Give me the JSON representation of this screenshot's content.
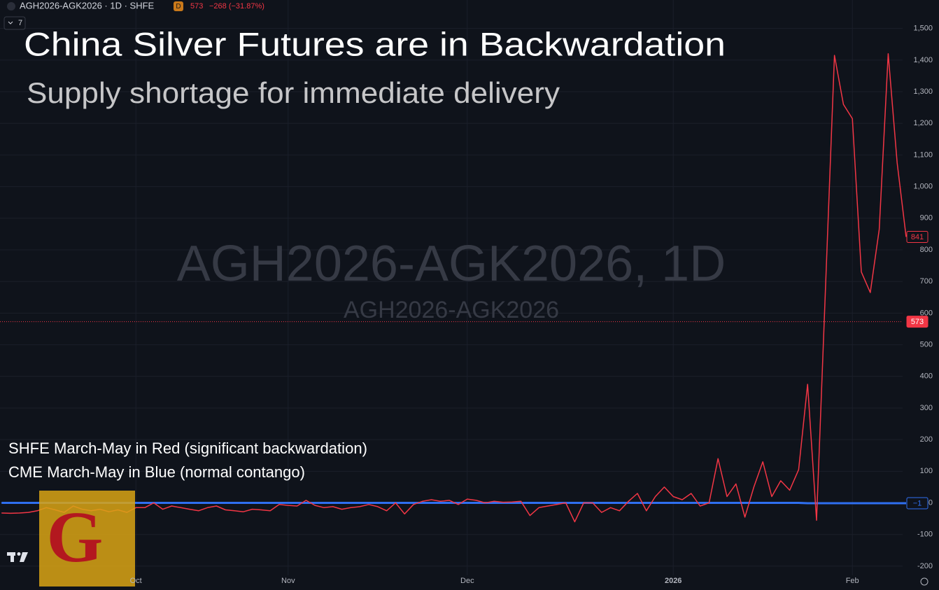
{
  "chart_data": {
    "type": "line",
    "header": {
      "symbol": "AGH2026-AGK2026 · 1D · SHFE",
      "badge": "D",
      "last": 573,
      "change": "−268 (−31.87%)",
      "indicators_count": 7
    },
    "title": "China Silver Futures are in Backwardation",
    "subtitle": "Supply shortage for immediate delivery",
    "watermark": [
      "AGH2026-AGK2026, 1D",
      "AGH2026-AGK2026"
    ],
    "annotations": [
      "SHFE March-May in Red (significant backwardation)",
      "CME March-May in Blue (normal contango)"
    ],
    "logo_text": "G",
    "categories": [
      null,
      null,
      null,
      null,
      null,
      null,
      null,
      null,
      null,
      null,
      null,
      null,
      null,
      null,
      null,
      "Oct",
      null,
      null,
      null,
      null,
      null,
      null,
      null,
      null,
      null,
      null,
      null,
      null,
      null,
      null,
      null,
      null,
      "Nov",
      null,
      null,
      null,
      null,
      null,
      null,
      null,
      null,
      null,
      null,
      null,
      null,
      null,
      null,
      null,
      null,
      null,
      null,
      null,
      "Dec",
      null,
      null,
      null,
      null,
      null,
      null,
      null,
      null,
      null,
      null,
      null,
      null,
      null,
      null,
      null,
      null,
      null,
      null,
      null,
      null,
      null,
      null,
      "2026",
      null,
      null,
      null,
      null,
      null,
      null,
      null,
      null,
      null,
      null,
      null,
      null,
      null,
      null,
      null,
      null,
      null,
      null,
      null,
      "Feb",
      null,
      null,
      null,
      null,
      null,
      null
    ],
    "series": [
      {
        "name": "SHFE March-May",
        "color": "#f23645",
        "values": [
          -32,
          -33,
          -32,
          -30,
          -25,
          -15,
          -22,
          -30,
          -10,
          -20,
          -25,
          -20,
          -28,
          -22,
          -30,
          -15,
          -15,
          0,
          -20,
          -10,
          -15,
          -20,
          -25,
          -15,
          -10,
          -22,
          -25,
          -28,
          -20,
          -22,
          -25,
          -5,
          -8,
          -10,
          8,
          -8,
          -15,
          -12,
          -20,
          -15,
          -12,
          -5,
          -12,
          -25,
          0,
          -35,
          -5,
          5,
          10,
          5,
          8,
          -5,
          12,
          8,
          0,
          5,
          2,
          3,
          5,
          -40,
          -15,
          -10,
          -5,
          0,
          -60,
          0,
          0,
          -30,
          -15,
          -25,
          5,
          30,
          -25,
          20,
          50,
          20,
          10,
          30,
          -10,
          0,
          140,
          20,
          60,
          -45,
          50,
          130,
          20,
          70,
          40,
          105,
          375,
          -55,
          680,
          1415,
          1260,
          1215,
          730,
          665,
          865,
          1420,
          1075,
          841
        ]
      },
      {
        "name": "CME March-May",
        "color": "#2f6ff0",
        "values": [
          0,
          0,
          0,
          0,
          0,
          0,
          0,
          0,
          0,
          0,
          0,
          0,
          0,
          0,
          0,
          0,
          0,
          0,
          0,
          0,
          0,
          0,
          0,
          0,
          0,
          0,
          0,
          0,
          0,
          0,
          0,
          0,
          0,
          0,
          0,
          0,
          0,
          0,
          0,
          0,
          0,
          0,
          0,
          0,
          0,
          0,
          0,
          0,
          0,
          0,
          0,
          0,
          0,
          0,
          0,
          0,
          0,
          0,
          0,
          0,
          0,
          0,
          0,
          0,
          0,
          0,
          0,
          0,
          0,
          0,
          0,
          0,
          0,
          0,
          0,
          0,
          0,
          0,
          0,
          0,
          0,
          0,
          0,
          0,
          0,
          0,
          0,
          0,
          0,
          0,
          -1,
          -1,
          -1,
          -1,
          -1,
          -1,
          -1,
          -1,
          -1,
          -1,
          -1,
          -1
        ]
      }
    ],
    "price_tags": [
      {
        "value": 841,
        "color": "#f23645",
        "style": "outline"
      },
      {
        "value": 573,
        "color": "#f23645",
        "style": "filled"
      },
      {
        "value": -1,
        "label": "−1",
        "color": "#2f6ff0",
        "style": "outline"
      }
    ],
    "ylim": [
      -229,
      1590
    ],
    "yticks": [
      -200,
      -100,
      0,
      100,
      200,
      300,
      400,
      500,
      600,
      700,
      800,
      900,
      {
        "value": 1000,
        "label": "1,000"
      },
      {
        "value": 1100,
        "label": "1,100"
      },
      {
        "value": 1200,
        "label": "1,200"
      },
      {
        "value": 1300,
        "label": "1,300"
      },
      {
        "value": 1400,
        "label": "1,400"
      },
      {
        "value": 1500,
        "label": "1,500"
      }
    ],
    "grid": true
  }
}
